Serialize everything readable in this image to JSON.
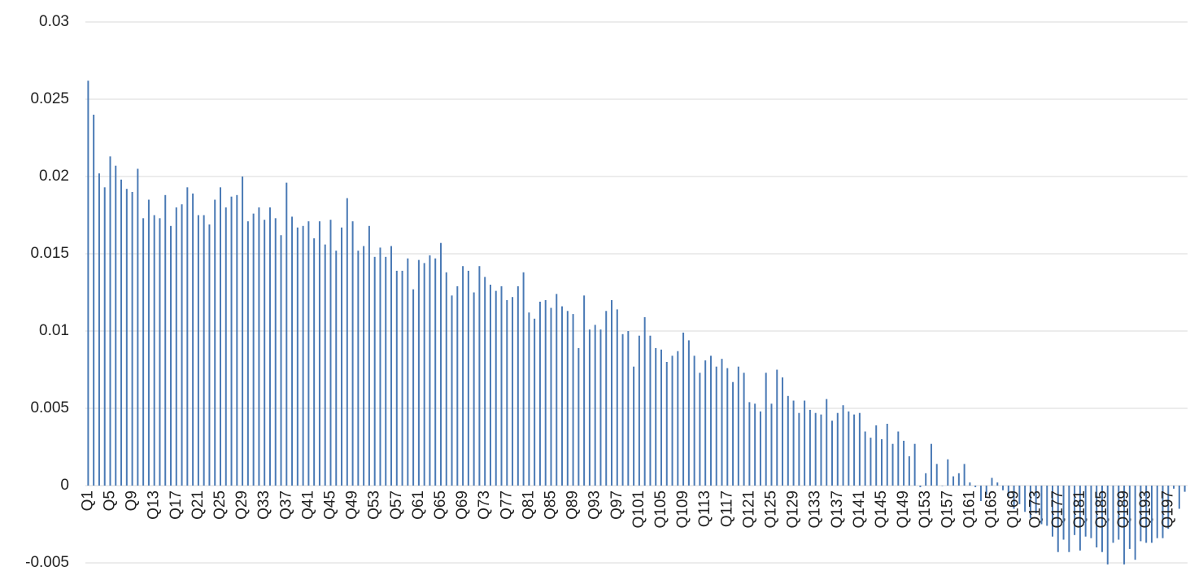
{
  "chart_data": {
    "type": "bar",
    "categories": [
      "Q1",
      null,
      null,
      null,
      "Q5",
      null,
      null,
      null,
      "Q9",
      null,
      null,
      null,
      "Q13",
      null,
      null,
      null,
      "Q17",
      null,
      null,
      null,
      "Q21",
      null,
      null,
      null,
      "Q25",
      null,
      null,
      null,
      "Q29",
      null,
      null,
      null,
      "Q33",
      null,
      null,
      null,
      "Q37",
      null,
      null,
      null,
      "Q41",
      null,
      null,
      null,
      "Q45",
      null,
      null,
      null,
      "Q49",
      null,
      null,
      null,
      "Q53",
      null,
      null,
      null,
      "Q57",
      null,
      null,
      null,
      "Q61",
      null,
      null,
      null,
      "Q65",
      null,
      null,
      null,
      "Q69",
      null,
      null,
      null,
      "Q73",
      null,
      null,
      null,
      "Q77",
      null,
      null,
      null,
      "Q81",
      null,
      null,
      null,
      "Q85",
      null,
      null,
      null,
      "Q89",
      null,
      null,
      null,
      "Q93",
      null,
      null,
      null,
      "Q97",
      null,
      null,
      null,
      "Q101",
      null,
      null,
      null,
      "Q105",
      null,
      null,
      null,
      "Q109",
      null,
      null,
      null,
      "Q113",
      null,
      null,
      null,
      "Q117",
      null,
      null,
      null,
      "Q121",
      null,
      null,
      null,
      "Q125",
      null,
      null,
      null,
      "Q129",
      null,
      null,
      null,
      "Q133",
      null,
      null,
      null,
      "Q137",
      null,
      null,
      null,
      "Q141",
      null,
      null,
      null,
      "Q145",
      null,
      null,
      null,
      "Q149",
      null,
      null,
      null,
      "Q153",
      null,
      null,
      null,
      "Q157",
      null,
      null,
      null,
      "Q161",
      null,
      null,
      null,
      "Q165",
      null,
      null,
      null,
      "Q169",
      null,
      null,
      null,
      "Q173",
      null,
      null,
      null,
      "Q177",
      null,
      null,
      null,
      "Q181",
      null,
      null,
      null,
      "Q185",
      null,
      null,
      null,
      "Q189",
      null,
      null,
      null,
      "Q193",
      null,
      null,
      null,
      "Q197",
      null,
      null,
      null
    ],
    "values": [
      0.0262,
      0.024,
      0.0202,
      0.0193,
      0.0213,
      0.0207,
      0.0198,
      0.0192,
      0.019,
      0.0205,
      0.0173,
      0.0185,
      0.0175,
      0.0173,
      0.0188,
      0.0168,
      0.018,
      0.0182,
      0.0193,
      0.0189,
      0.0175,
      0.0175,
      0.0169,
      0.0185,
      0.0193,
      0.018,
      0.0187,
      0.0188,
      0.02,
      0.0171,
      0.0176,
      0.018,
      0.0172,
      0.018,
      0.0173,
      0.0162,
      0.0196,
      0.0174,
      0.0167,
      0.0168,
      0.0171,
      0.016,
      0.0171,
      0.0156,
      0.0172,
      0.0152,
      0.0167,
      0.0186,
      0.0171,
      0.0152,
      0.0155,
      0.0168,
      0.0148,
      0.0154,
      0.0148,
      0.0155,
      0.0139,
      0.0139,
      0.0147,
      0.0127,
      0.0146,
      0.0144,
      0.0149,
      0.0147,
      0.0157,
      0.0138,
      0.0123,
      0.0129,
      0.0142,
      0.0139,
      0.0125,
      0.0142,
      0.0135,
      0.013,
      0.0126,
      0.0129,
      0.012,
      0.0122,
      0.0129,
      0.0138,
      0.0112,
      0.0108,
      0.0119,
      0.012,
      0.0115,
      0.0124,
      0.0116,
      0.0113,
      0.0111,
      0.0089,
      0.0123,
      0.0101,
      0.0104,
      0.0101,
      0.0113,
      0.012,
      0.0114,
      0.0098,
      0.01,
      0.0077,
      0.0097,
      0.0109,
      0.0097,
      0.0089,
      0.0088,
      0.008,
      0.0084,
      0.0087,
      0.0099,
      0.0094,
      0.0084,
      0.0073,
      0.0081,
      0.0084,
      0.0077,
      0.0082,
      0.0076,
      0.0067,
      0.0077,
      0.0073,
      0.0054,
      0.0053,
      0.0048,
      0.0073,
      0.0053,
      0.0075,
      0.007,
      0.0058,
      0.0055,
      0.0047,
      0.0055,
      0.0049,
      0.0047,
      0.0046,
      0.0056,
      0.0042,
      0.0047,
      0.0052,
      0.0048,
      0.0046,
      0.0047,
      0.0035,
      0.0031,
      0.0039,
      0.003,
      0.004,
      0.0027,
      0.0035,
      0.0029,
      0.0019,
      0.0027,
      -0.0001,
      0.0008,
      0.0027,
      0.0014,
      0,
      0.0017,
      0.0006,
      0.0008,
      0.0014,
      0.0002,
      -0.0001,
      -0.001,
      -0.0006,
      0.0005,
      0.0002,
      -0.0003,
      -0.0007,
      -0.0015,
      -0.0012,
      -0.0017,
      -0.0021,
      -0.0018,
      -0.0025,
      -0.0026,
      -0.0033,
      -0.0043,
      -0.0035,
      -0.0043,
      -0.0032,
      -0.0042,
      -0.0033,
      -0.0034,
      -0.004,
      -0.0043,
      -0.0051,
      -0.0037,
      -0.0035,
      -0.0051,
      -0.0041,
      -0.0048,
      -0.0036,
      -0.0037,
      -0.0037,
      -0.0034,
      -0.0034,
      -0.0028,
      -0.0002,
      -0.0015,
      -0.0004
    ],
    "color": "#4a7ab5",
    "ylim": [
      -0.005,
      0.03
    ],
    "yticks": [
      -0.005,
      0,
      0.005,
      0.01,
      0.015,
      0.02,
      0.025,
      0.03
    ],
    "grid": true
  }
}
